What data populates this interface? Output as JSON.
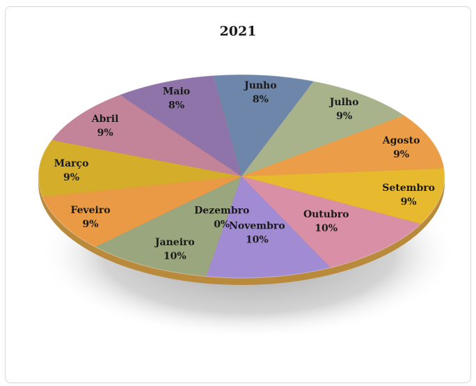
{
  "chart_data": {
    "type": "pie",
    "title": "2021",
    "categories": [
      "Janeiro",
      "Feveiro",
      "Março",
      "Abril",
      "Maio",
      "Junho",
      "Julho",
      "Agosto",
      "Setembro",
      "Outubro",
      "Novembro",
      "Dezembro"
    ],
    "values": [
      10,
      9,
      9,
      9,
      8,
      8,
      9,
      9,
      9,
      10,
      10,
      0
    ],
    "value_labels": [
      "10%",
      "9%",
      "9%",
      "9%",
      "8%",
      "8%",
      "9%",
      "9%",
      "9%",
      "10%",
      "10%",
      "0%"
    ],
    "colors": [
      "#9aa67d",
      "#ea9a45",
      "#d4ad2a",
      "#c3849a",
      "#8e74a8",
      "#6f86ab",
      "#a8b38c",
      "#ec9d47",
      "#e6b92f",
      "#d98fa5",
      "#a18bd2",
      "#9aa67d"
    ],
    "legend": "none",
    "style": "3d-tilted"
  }
}
